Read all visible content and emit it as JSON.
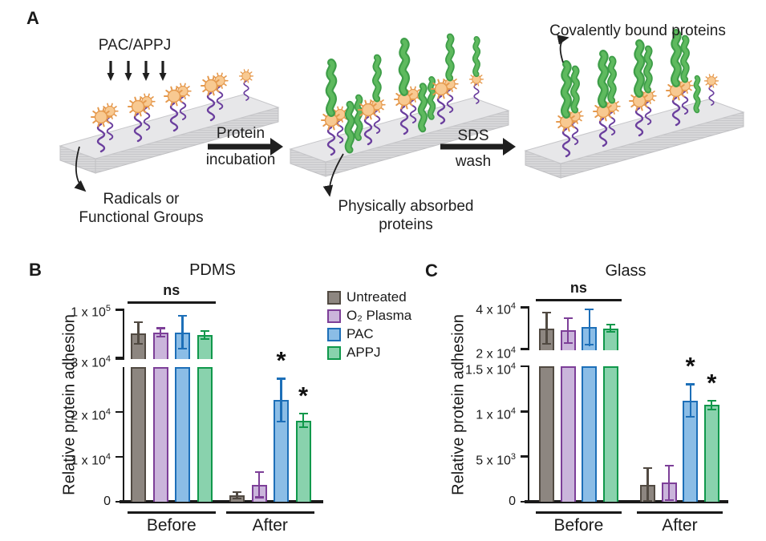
{
  "panel_a": {
    "label": "A",
    "treatment_label": "PAC/APPJ",
    "step1_arrow": {
      "line1": "Protein",
      "line2": "incubation"
    },
    "step2_arrow": {
      "line1": "SDS",
      "line2": "wash"
    },
    "surface_annotation": {
      "line1": "Radicals or",
      "line2": "Functional Groups"
    },
    "absorbed_annotation": {
      "line1": "Physically absorbed",
      "line2": "proteins"
    },
    "covalent_annotation": "Covalently bound proteins"
  },
  "panel_b": {
    "label": "B"
  },
  "panel_c": {
    "label": "C"
  },
  "colors": {
    "slab": "#e7e7e9",
    "polymer_chain": "#6b3f9e",
    "radical_sun": "#f8c991",
    "protein_green": "#4fae54",
    "untreated_fill": "#8d8680",
    "untreated_edge": "#514a42",
    "o2_plasma_fill": "#cab5db",
    "o2_plasma_edge": "#7d3f98",
    "pac_fill": "#8bbde6",
    "pac_edge": "#1d6fb8",
    "appj_fill": "#89d2ad",
    "appj_edge": "#10984b"
  },
  "chart_data": [
    {
      "panel": "B",
      "type": "bar",
      "title": "PDMS",
      "ylabel": "Relative protein adhesion",
      "categories": [
        "Before",
        "After"
      ],
      "axis_break": true,
      "upper_axis": {
        "range": [
          30000,
          100000
        ],
        "ticks": [
          {
            "value": 100000,
            "label": "1 x 10^5"
          }
        ]
      },
      "lower_axis": {
        "range": [
          0,
          30000
        ],
        "ticks": [
          {
            "value": 0,
            "label": "0"
          },
          {
            "value": 10000,
            "label": "1 x 10^4"
          },
          {
            "value": 20000,
            "label": "2 x 10^4"
          },
          {
            "value": 30000,
            "label": "3 x 10^4"
          }
        ]
      },
      "series": [
        {
          "name": "Untreated",
          "fill": "#8d8680",
          "edge": "#514a42",
          "values": [
            66000,
            1400
          ],
          "errors": [
            16000,
            900
          ],
          "sig": [
            false,
            false
          ]
        },
        {
          "name": "O₂ Plasma",
          "fill": "#cab5db",
          "edge": "#7d3f98",
          "values": [
            67000,
            3800
          ],
          "errors": [
            7000,
            3000
          ],
          "sig": [
            false,
            false
          ]
        },
        {
          "name": "PAC",
          "fill": "#8bbde6",
          "edge": "#1d6fb8",
          "values": [
            67000,
            22600
          ],
          "errors": [
            24000,
            5000
          ],
          "sig": [
            false,
            true
          ]
        },
        {
          "name": "APPJ",
          "fill": "#89d2ad",
          "edge": "#10984b",
          "values": [
            63500,
            18100
          ],
          "errors": [
            7000,
            1700
          ],
          "sig": [
            false,
            true
          ]
        }
      ],
      "annotations": {
        "ns_label": "ns",
        "ns_group": "Before",
        "sig_marker": "*"
      },
      "legend_visible": true
    },
    {
      "panel": "C",
      "type": "bar",
      "title": "Glass",
      "ylabel": "Relative protein adhesion",
      "categories": [
        "Before",
        "After"
      ],
      "axis_break": true,
      "upper_axis": {
        "range": [
          20000,
          40000
        ],
        "ticks": [
          {
            "value": 20000,
            "label": "2 x 10^4"
          },
          {
            "value": 40000,
            "label": "4 x 10^4"
          }
        ]
      },
      "lower_axis": {
        "range": [
          0,
          15000
        ],
        "ticks": [
          {
            "value": 0,
            "label": "0"
          },
          {
            "value": 5000,
            "label": "5 x 10^3"
          },
          {
            "value": 10000,
            "label": "1 x 10^4"
          },
          {
            "value": 15000,
            "label": "1.5 x 10^4"
          }
        ]
      },
      "series": [
        {
          "name": "Untreated",
          "fill": "#8d8680",
          "edge": "#514a42",
          "values": [
            30000,
            1900
          ],
          "errors": [
            7500,
            1900
          ],
          "sig": [
            false,
            false
          ]
        },
        {
          "name": "O₂ Plasma",
          "fill": "#cab5db",
          "edge": "#7d3f98",
          "values": [
            29000,
            2100
          ],
          "errors": [
            6000,
            2000
          ],
          "sig": [
            false,
            false
          ]
        },
        {
          "name": "PAC",
          "fill": "#8bbde6",
          "edge": "#1d6fb8",
          "values": [
            30500,
            11200
          ],
          "errors": [
            8500,
            1900
          ],
          "sig": [
            false,
            true
          ]
        },
        {
          "name": "APPJ",
          "fill": "#89d2ad",
          "edge": "#10984b",
          "values": [
            30000,
            10700
          ],
          "errors": [
            2000,
            600
          ],
          "sig": [
            false,
            true
          ]
        }
      ],
      "annotations": {
        "ns_label": "ns",
        "ns_group": "Before",
        "sig_marker": "*"
      },
      "legend_visible": false
    }
  ]
}
